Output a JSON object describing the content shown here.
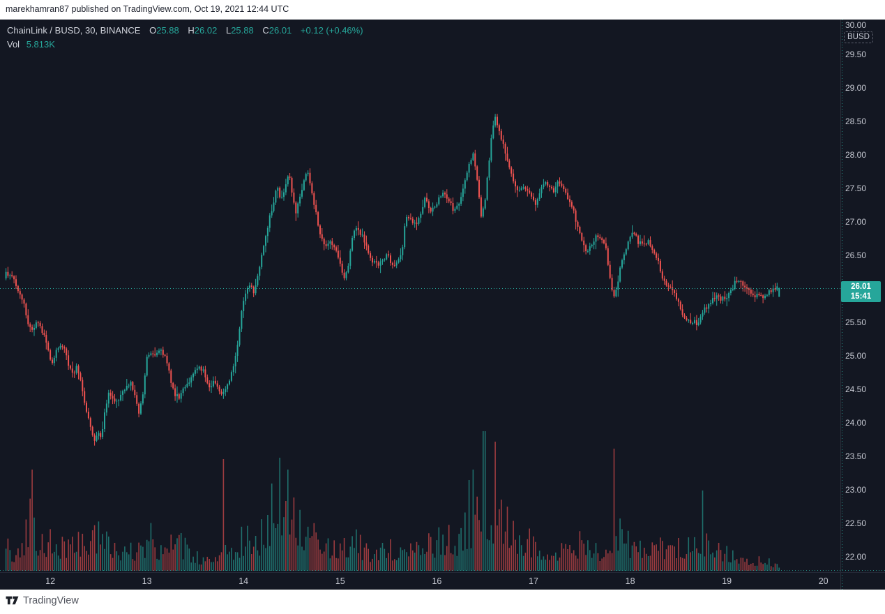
{
  "header": {
    "attribution": "marekhamran87 published on TradingView.com, Oct 19, 2021 12:44 UTC"
  },
  "legend": {
    "title": "ChainLink / BUSD, 30, BINANCE",
    "ohlc": [
      {
        "label": "O",
        "value": "25.88"
      },
      {
        "label": "H",
        "value": "26.02"
      },
      {
        "label": "L",
        "value": "25.88"
      },
      {
        "label": "C",
        "value": "26.01"
      }
    ],
    "change": "+0.12 (+0.46%)",
    "vol_label": "Vol",
    "vol_value": "5.813K"
  },
  "price_axis": {
    "unit_button": "BUSD",
    "ticks": [
      {
        "label": "30.00",
        "value": 30.0
      },
      {
        "label": "29.50",
        "value": 29.5
      },
      {
        "label": "29.00",
        "value": 29.0
      },
      {
        "label": "28.50",
        "value": 28.5
      },
      {
        "label": "28.00",
        "value": 28.0
      },
      {
        "label": "27.50",
        "value": 27.5
      },
      {
        "label": "27.00",
        "value": 27.0
      },
      {
        "label": "26.50",
        "value": 26.5
      },
      {
        "label": "25.50",
        "value": 25.5
      },
      {
        "label": "25.00",
        "value": 25.0
      },
      {
        "label": "24.50",
        "value": 24.5
      },
      {
        "label": "24.00",
        "value": 24.0
      },
      {
        "label": "23.50",
        "value": 23.5
      },
      {
        "label": "23.00",
        "value": 23.0
      },
      {
        "label": "22.50",
        "value": 22.5
      },
      {
        "label": "22.00",
        "value": 22.0
      }
    ],
    "last_price_badge": {
      "price_label": "26.01",
      "price_value": 26.01,
      "countdown": "15:41"
    }
  },
  "time_axis": {
    "ticks": [
      {
        "label": "12",
        "value": 12
      },
      {
        "label": "13",
        "value": 13
      },
      {
        "label": "14",
        "value": 14
      },
      {
        "label": "15",
        "value": 15
      },
      {
        "label": "16",
        "value": 16
      },
      {
        "label": "17",
        "value": 17
      },
      {
        "label": "18",
        "value": 18
      },
      {
        "label": "19",
        "value": 19
      },
      {
        "label": "20",
        "value": 20
      }
    ]
  },
  "footer": {
    "brand": "TradingView"
  },
  "colors": {
    "background": "#131722",
    "up": "#26a69a",
    "down": "#ef5350",
    "axis_text": "#c7cad3",
    "legend_text": "#d1d4dc",
    "badge_bg": "#26a69a",
    "price_line": "#26a69a"
  },
  "chart_data": {
    "type": "candlestick+volume",
    "title": "ChainLink / BUSD, 30, BINANCE",
    "symbol": "ChainLink / BUSD",
    "interval_minutes": 30,
    "exchange": "BINANCE",
    "x_unit": "day of Oct 2021",
    "xlim": [
      11.48,
      20.175
    ],
    "ylim": [
      21.79,
      30.021
    ],
    "grid": false,
    "last_candle": {
      "o": 25.88,
      "h": 26.02,
      "l": 25.88,
      "c": 26.01
    },
    "last_price": 26.01,
    "candles": {
      "start": 11.5417,
      "step": 0.0208333,
      "count": 385
    },
    "price_path": [
      [
        11.535,
        26.12
      ],
      [
        11.56,
        26.25
      ],
      [
        11.6,
        26.18
      ],
      [
        11.63,
        26.23
      ],
      [
        11.67,
        26.05
      ],
      [
        11.72,
        25.9
      ],
      [
        11.76,
        25.7
      ],
      [
        11.8,
        25.45
      ],
      [
        11.84,
        25.38
      ],
      [
        11.88,
        25.52
      ],
      [
        11.92,
        25.4
      ],
      [
        11.97,
        25.3
      ],
      [
        12.01,
        25.0
      ],
      [
        12.04,
        24.88
      ],
      [
        12.08,
        25.05
      ],
      [
        12.12,
        25.18
      ],
      [
        12.17,
        25.08
      ],
      [
        12.21,
        24.85
      ],
      [
        12.26,
        24.7
      ],
      [
        12.3,
        24.85
      ],
      [
        12.34,
        24.6
      ],
      [
        12.39,
        24.2
      ],
      [
        12.44,
        23.95
      ],
      [
        12.48,
        23.72
      ],
      [
        12.52,
        23.88
      ],
      [
        12.55,
        23.8
      ],
      [
        12.58,
        24.1
      ],
      [
        12.63,
        24.45
      ],
      [
        12.67,
        24.35
      ],
      [
        12.72,
        24.3
      ],
      [
        12.77,
        24.5
      ],
      [
        12.82,
        24.55
      ],
      [
        12.86,
        24.62
      ],
      [
        12.9,
        24.35
      ],
      [
        12.94,
        24.15
      ],
      [
        12.98,
        24.45
      ],
      [
        13.02,
        24.95
      ],
      [
        13.07,
        25.05
      ],
      [
        13.12,
        25.02
      ],
      [
        13.17,
        25.08
      ],
      [
        13.22,
        24.98
      ],
      [
        13.27,
        24.6
      ],
      [
        13.31,
        24.4
      ],
      [
        13.36,
        24.38
      ],
      [
        13.41,
        24.55
      ],
      [
        13.46,
        24.62
      ],
      [
        13.51,
        24.75
      ],
      [
        13.56,
        24.82
      ],
      [
        13.61,
        24.8
      ],
      [
        13.66,
        24.5
      ],
      [
        13.71,
        24.6
      ],
      [
        13.76,
        24.48
      ],
      [
        13.81,
        24.42
      ],
      [
        13.86,
        24.6
      ],
      [
        13.91,
        24.8
      ],
      [
        13.96,
        25.2
      ],
      [
        14.01,
        25.75
      ],
      [
        14.05,
        26.0
      ],
      [
        14.09,
        26.08
      ],
      [
        14.13,
        25.95
      ],
      [
        14.18,
        26.3
      ],
      [
        14.23,
        26.65
      ],
      [
        14.28,
        27.0
      ],
      [
        14.33,
        27.3
      ],
      [
        14.37,
        27.55
      ],
      [
        14.41,
        27.3
      ],
      [
        14.45,
        27.55
      ],
      [
        14.49,
        27.75
      ],
      [
        14.52,
        27.45
      ],
      [
        14.56,
        27.1
      ],
      [
        14.6,
        27.35
      ],
      [
        14.64,
        27.6
      ],
      [
        14.68,
        27.8
      ],
      [
        14.72,
        27.45
      ],
      [
        14.76,
        27.2
      ],
      [
        14.8,
        26.9
      ],
      [
        14.84,
        26.7
      ],
      [
        14.88,
        26.65
      ],
      [
        14.93,
        26.7
      ],
      [
        14.97,
        26.6
      ],
      [
        15.02,
        26.4
      ],
      [
        15.06,
        26.15
      ],
      [
        15.1,
        26.3
      ],
      [
        15.14,
        26.7
      ],
      [
        15.18,
        26.95
      ],
      [
        15.22,
        26.85
      ],
      [
        15.26,
        26.75
      ],
      [
        15.31,
        26.55
      ],
      [
        15.36,
        26.4
      ],
      [
        15.41,
        26.35
      ],
      [
        15.46,
        26.45
      ],
      [
        15.51,
        26.5
      ],
      [
        15.56,
        26.35
      ],
      [
        15.61,
        26.4
      ],
      [
        15.66,
        26.55
      ],
      [
        15.7,
        27.1
      ],
      [
        15.75,
        27.05
      ],
      [
        15.8,
        26.95
      ],
      [
        15.85,
        27.1
      ],
      [
        15.9,
        27.35
      ],
      [
        15.95,
        27.15
      ],
      [
        16.0,
        27.25
      ],
      [
        16.05,
        27.35
      ],
      [
        16.1,
        27.45
      ],
      [
        16.15,
        27.3
      ],
      [
        16.2,
        27.15
      ],
      [
        16.25,
        27.25
      ],
      [
        16.3,
        27.55
      ],
      [
        16.35,
        27.85
      ],
      [
        16.4,
        28.0
      ],
      [
        16.44,
        27.6
      ],
      [
        16.48,
        27.05
      ],
      [
        16.52,
        27.3
      ],
      [
        16.56,
        27.9
      ],
      [
        16.6,
        28.45
      ],
      [
        16.63,
        28.55
      ],
      [
        16.67,
        28.35
      ],
      [
        16.71,
        28.15
      ],
      [
        16.75,
        27.95
      ],
      [
        16.79,
        27.7
      ],
      [
        16.83,
        27.5
      ],
      [
        16.87,
        27.45
      ],
      [
        16.91,
        27.55
      ],
      [
        16.95,
        27.5
      ],
      [
        17.0,
        27.4
      ],
      [
        17.04,
        27.25
      ],
      [
        17.08,
        27.4
      ],
      [
        17.13,
        27.6
      ],
      [
        17.18,
        27.55
      ],
      [
        17.23,
        27.45
      ],
      [
        17.28,
        27.6
      ],
      [
        17.33,
        27.5
      ],
      [
        17.38,
        27.3
      ],
      [
        17.43,
        27.2
      ],
      [
        17.48,
        26.9
      ],
      [
        17.53,
        26.65
      ],
      [
        17.58,
        26.55
      ],
      [
        17.63,
        26.7
      ],
      [
        17.68,
        26.8
      ],
      [
        17.73,
        26.75
      ],
      [
        17.77,
        26.6
      ],
      [
        17.81,
        26.2
      ],
      [
        17.85,
        25.85
      ],
      [
        17.89,
        26.05
      ],
      [
        17.93,
        26.4
      ],
      [
        17.97,
        26.55
      ],
      [
        18.02,
        26.8
      ],
      [
        18.06,
        26.85
      ],
      [
        18.1,
        26.7
      ],
      [
        18.15,
        26.65
      ],
      [
        18.2,
        26.72
      ],
      [
        18.25,
        26.6
      ],
      [
        18.3,
        26.45
      ],
      [
        18.35,
        26.2
      ],
      [
        18.4,
        26.05
      ],
      [
        18.45,
        26.0
      ],
      [
        18.5,
        25.85
      ],
      [
        18.54,
        25.7
      ],
      [
        18.58,
        25.6
      ],
      [
        18.63,
        25.5
      ],
      [
        18.68,
        25.52
      ],
      [
        18.72,
        25.48
      ],
      [
        18.76,
        25.65
      ],
      [
        18.81,
        25.72
      ],
      [
        18.86,
        25.8
      ],
      [
        18.91,
        25.9
      ],
      [
        18.96,
        25.85
      ],
      [
        19.01,
        25.88
      ],
      [
        19.06,
        25.95
      ],
      [
        19.11,
        26.12
      ],
      [
        19.15,
        26.15
      ],
      [
        19.2,
        26.05
      ],
      [
        19.25,
        25.95
      ],
      [
        19.3,
        25.88
      ],
      [
        19.35,
        25.92
      ],
      [
        19.4,
        25.88
      ],
      [
        19.45,
        25.95
      ],
      [
        19.5,
        26.0
      ],
      [
        19.545,
        26.01
      ]
    ],
    "volume_profile": [
      [
        11.53,
        60
      ],
      [
        11.62,
        40
      ],
      [
        11.72,
        60
      ],
      [
        11.8,
        120
      ],
      [
        11.85,
        70
      ],
      [
        11.95,
        55
      ],
      [
        12.05,
        65
      ],
      [
        12.15,
        50
      ],
      [
        12.25,
        60
      ],
      [
        12.35,
        70
      ],
      [
        12.45,
        85
      ],
      [
        12.55,
        60
      ],
      [
        12.65,
        55
      ],
      [
        12.75,
        40
      ],
      [
        12.85,
        45
      ],
      [
        12.95,
        55
      ],
      [
        13.05,
        70
      ],
      [
        13.15,
        45
      ],
      [
        13.25,
        55
      ],
      [
        13.35,
        60
      ],
      [
        13.45,
        35
      ],
      [
        13.55,
        30
      ],
      [
        13.65,
        28
      ],
      [
        13.75,
        35
      ],
      [
        13.8,
        60
      ],
      [
        13.9,
        50
      ],
      [
        13.98,
        65
      ],
      [
        14.05,
        75
      ],
      [
        14.15,
        65
      ],
      [
        14.25,
        95
      ],
      [
        14.33,
        110
      ],
      [
        14.4,
        130
      ],
      [
        14.48,
        120
      ],
      [
        14.55,
        95
      ],
      [
        14.65,
        85
      ],
      [
        14.75,
        65
      ],
      [
        14.85,
        50
      ],
      [
        14.95,
        45
      ],
      [
        15.05,
        60
      ],
      [
        15.15,
        65
      ],
      [
        15.25,
        45
      ],
      [
        15.35,
        40
      ],
      [
        15.45,
        50
      ],
      [
        15.55,
        45
      ],
      [
        15.65,
        55
      ],
      [
        15.72,
        70
      ],
      [
        15.8,
        50
      ],
      [
        15.9,
        65
      ],
      [
        16.0,
        60
      ],
      [
        16.1,
        75
      ],
      [
        16.2,
        65
      ],
      [
        16.3,
        90
      ],
      [
        16.4,
        110
      ],
      [
        16.48,
        140
      ],
      [
        16.55,
        120
      ],
      [
        16.63,
        130
      ],
      [
        16.72,
        100
      ],
      [
        16.8,
        85
      ],
      [
        16.9,
        70
      ],
      [
        17.0,
        60
      ],
      [
        17.1,
        50
      ],
      [
        17.2,
        45
      ],
      [
        17.3,
        50
      ],
      [
        17.4,
        55
      ],
      [
        17.5,
        60
      ],
      [
        17.6,
        50
      ],
      [
        17.7,
        45
      ],
      [
        17.8,
        70
      ],
      [
        17.88,
        80
      ],
      [
        17.95,
        65
      ],
      [
        18.05,
        55
      ],
      [
        18.15,
        45
      ],
      [
        18.25,
        40
      ],
      [
        18.35,
        55
      ],
      [
        18.45,
        50
      ],
      [
        18.55,
        55
      ],
      [
        18.65,
        50
      ],
      [
        18.72,
        60
      ],
      [
        18.8,
        55
      ],
      [
        18.9,
        45
      ],
      [
        19.0,
        40
      ],
      [
        19.1,
        35
      ],
      [
        19.2,
        28
      ],
      [
        19.3,
        22
      ],
      [
        19.4,
        20
      ],
      [
        19.5,
        15
      ],
      [
        19.55,
        12
      ]
    ],
    "volume_spikes": [
      [
        11.82,
        145,
        "down"
      ],
      [
        13.792,
        160,
        "down"
      ],
      [
        14.292,
        125,
        "up"
      ],
      [
        14.375,
        162,
        "up"
      ],
      [
        14.44,
        100,
        "down"
      ],
      [
        14.458,
        145,
        "up"
      ],
      [
        14.52,
        105,
        "down"
      ],
      [
        16.333,
        130,
        "up"
      ],
      [
        16.375,
        145,
        "up"
      ],
      [
        16.49,
        200,
        "up"
      ],
      [
        16.6,
        185,
        "down"
      ],
      [
        17.833,
        175,
        "down"
      ],
      [
        18.75,
        115,
        "up"
      ]
    ]
  }
}
